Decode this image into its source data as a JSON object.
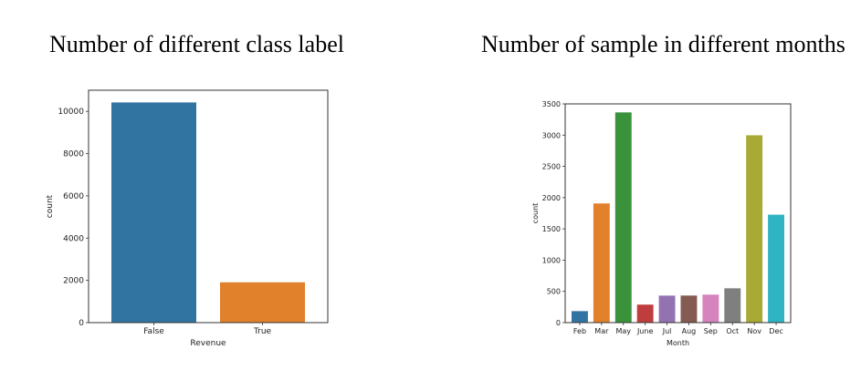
{
  "captions": {
    "left": "Number of different class label",
    "right": "Number of sample in different months"
  },
  "chart_data": [
    {
      "type": "bar",
      "categories": [
        "False",
        "True"
      ],
      "values": [
        10422,
        1908
      ],
      "xlabel": "Revenue",
      "ylabel": "count",
      "ylim": [
        0,
        11000
      ],
      "yticks": [
        0,
        2000,
        4000,
        6000,
        8000,
        10000
      ],
      "colors": [
        "#3274a1",
        "#e1812c"
      ],
      "grid": false
    },
    {
      "type": "bar",
      "categories": [
        "Feb",
        "Mar",
        "May",
        "June",
        "Jul",
        "Aug",
        "Sep",
        "Oct",
        "Nov",
        "Dec"
      ],
      "values": [
        184,
        1907,
        3364,
        288,
        432,
        433,
        448,
        549,
        2998,
        1727
      ],
      "xlabel": "Month",
      "ylabel": "count",
      "ylim": [
        0,
        3500
      ],
      "yticks": [
        0,
        500,
        1000,
        1500,
        2000,
        2500,
        3000,
        3500
      ],
      "colors": [
        "#3274a1",
        "#e1812c",
        "#3a923a",
        "#c03d3e",
        "#9372b2",
        "#845b53",
        "#d684bd",
        "#7f7f7f",
        "#a9aa35",
        "#2eb4c2"
      ],
      "grid": false
    }
  ]
}
